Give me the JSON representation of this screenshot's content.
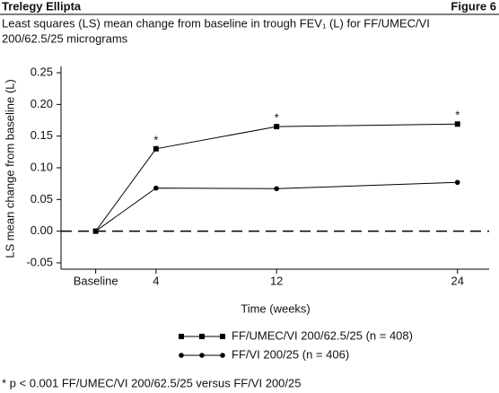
{
  "header": {
    "title": "Trelegy Ellipta",
    "figure": "Figure 6"
  },
  "chart_data": {
    "type": "line",
    "title": "Least squares (LS) mean change from baseline in trough FEV₁ (L) for FF/UMEC/VI",
    "subtitle": "200/62.5/25 micrograms",
    "x_label": "Time (weeks)",
    "y_label": "LS mean change from baseline (L)",
    "x": [
      0,
      4,
      12,
      24
    ],
    "xlim": [
      -2.3,
      26.1
    ],
    "xticks": [
      {
        "value": 0,
        "label": "Baseline"
      },
      4,
      12,
      24
    ],
    "ylim": [
      -0.06,
      0.26
    ],
    "yticks": [
      {
        "value": 0.25,
        "label": "0.25"
      },
      {
        "value": 0.2,
        "label": "0.20"
      },
      {
        "value": 0.15,
        "label": "0.15"
      },
      {
        "value": 0.1,
        "label": "0.10"
      },
      {
        "value": 0.05,
        "label": "0.05"
      },
      {
        "value": 0,
        "label": "0.00"
      },
      {
        "value": -0.05,
        "label": "-0.05"
      }
    ],
    "zero_line": "dashed",
    "series": [
      {
        "name": "FF/UMEC/VI 200/62.5/25 (n = 408)",
        "color": "#000000",
        "marker": "square",
        "values": [
          0,
          0.13,
          0.165,
          0.169
        ],
        "point_labels": [
          null,
          "*",
          "*",
          "*"
        ]
      },
      {
        "name": "FF/VI 200/25 (n = 406)",
        "color": "#000000",
        "marker": "circle",
        "values": [
          0,
          0.068,
          0.067,
          0.077
        ]
      }
    ],
    "footnote": "* p < 0.001 FF/UMEC/VI 200/62.5/25 versus FF/VI 200/25"
  }
}
